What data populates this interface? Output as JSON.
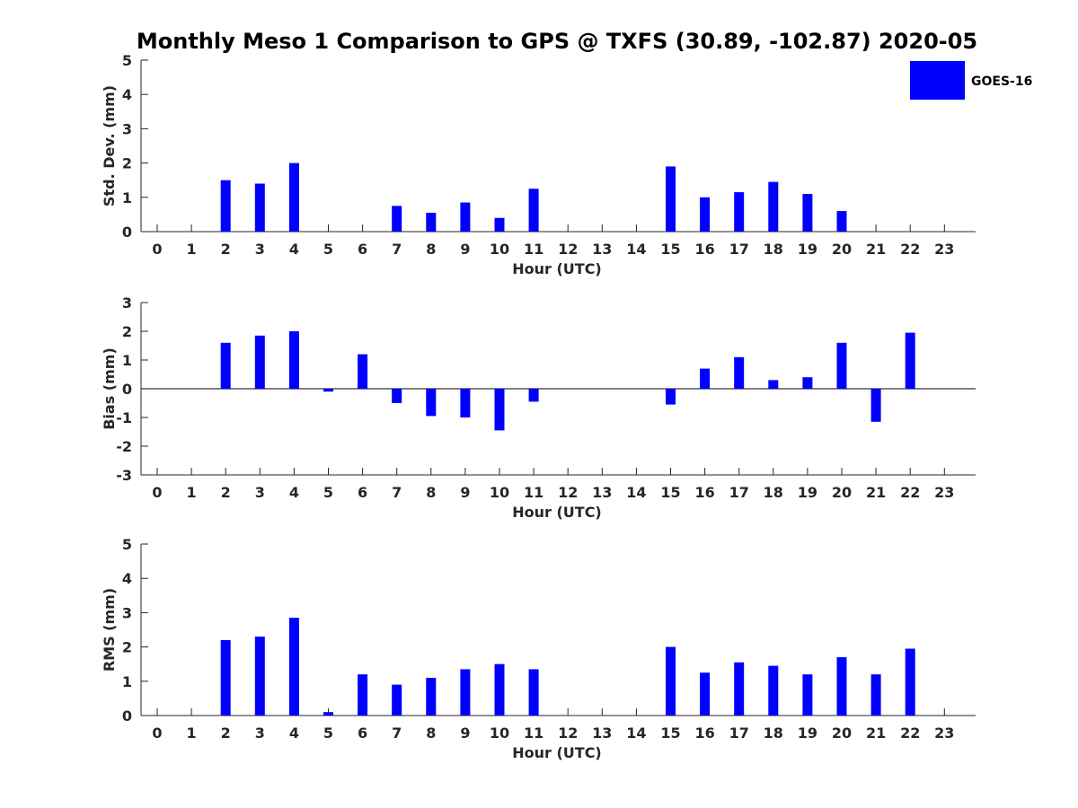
{
  "title": "Monthly Meso 1 Comparison to GPS @ TXFS (30.89, -102.87) 2020-05",
  "legend": {
    "label": "GOES-16",
    "color": "#0000ff",
    "placement": "top-right"
  },
  "colors": {
    "bar": "#0000ff",
    "axis": "#262626"
  },
  "chart_data": [
    {
      "type": "bar",
      "xlabel": "Hour (UTC)",
      "ylabel": "Std. Dev. (mm)",
      "ylim": [
        0,
        5
      ],
      "yticks": [
        0,
        1,
        2,
        3,
        4,
        5
      ],
      "categories": [
        0,
        1,
        2,
        3,
        4,
        5,
        6,
        7,
        8,
        9,
        10,
        11,
        12,
        13,
        14,
        15,
        16,
        17,
        18,
        19,
        20,
        21,
        22,
        23
      ],
      "series": [
        {
          "name": "GOES-16",
          "values": [
            null,
            null,
            1.5,
            1.4,
            2.0,
            null,
            null,
            0.75,
            0.55,
            0.85,
            0.4,
            1.25,
            null,
            null,
            null,
            1.9,
            1.0,
            1.15,
            1.45,
            1.1,
            0.6,
            null,
            null,
            null
          ]
        }
      ]
    },
    {
      "type": "bar",
      "xlabel": "Hour (UTC)",
      "ylabel": "Bias (mm)",
      "ylim": [
        -3,
        3
      ],
      "yticks": [
        -3,
        -2,
        -1,
        0,
        1,
        2,
        3
      ],
      "zero_line": true,
      "categories": [
        0,
        1,
        2,
        3,
        4,
        5,
        6,
        7,
        8,
        9,
        10,
        11,
        12,
        13,
        14,
        15,
        16,
        17,
        18,
        19,
        20,
        21,
        22,
        23
      ],
      "series": [
        {
          "name": "GOES-16",
          "values": [
            null,
            null,
            1.6,
            1.85,
            2.0,
            -0.1,
            1.2,
            -0.5,
            -0.95,
            -1.0,
            -1.45,
            -0.45,
            null,
            null,
            null,
            -0.55,
            0.7,
            1.1,
            0.3,
            0.4,
            1.6,
            -1.15,
            1.95,
            null
          ]
        }
      ]
    },
    {
      "type": "bar",
      "xlabel": "Hour (UTC)",
      "ylabel": "RMS (mm)",
      "ylim": [
        0,
        5
      ],
      "yticks": [
        0,
        1,
        2,
        3,
        4,
        5
      ],
      "categories": [
        0,
        1,
        2,
        3,
        4,
        5,
        6,
        7,
        8,
        9,
        10,
        11,
        12,
        13,
        14,
        15,
        16,
        17,
        18,
        19,
        20,
        21,
        22,
        23
      ],
      "series": [
        {
          "name": "GOES-16",
          "values": [
            null,
            null,
            2.2,
            2.3,
            2.85,
            0.1,
            1.2,
            0.9,
            1.1,
            1.35,
            1.5,
            1.35,
            null,
            null,
            null,
            2.0,
            1.25,
            1.55,
            1.45,
            1.2,
            1.7,
            1.2,
            1.95,
            null
          ]
        }
      ]
    }
  ]
}
